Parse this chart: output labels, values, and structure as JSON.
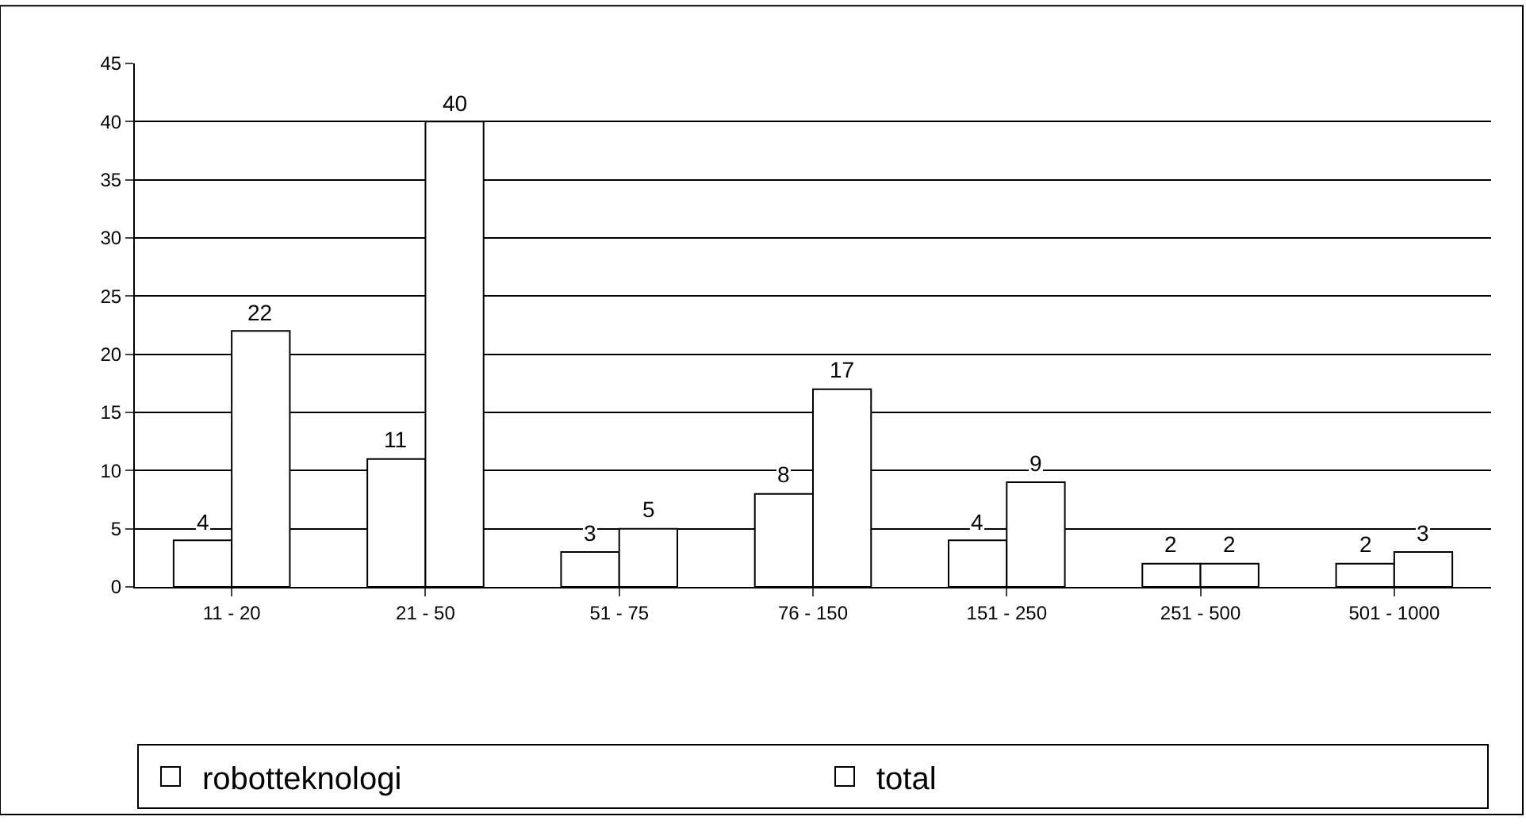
{
  "chart_data": {
    "type": "bar",
    "categories": [
      "11 - 20",
      "21 - 50",
      "51 - 75",
      "76 - 150",
      "151 - 250",
      "251 - 500",
      "501 - 1000"
    ],
    "series": [
      {
        "name": "robotteknologi",
        "color": "#ffffff",
        "values": [
          4,
          11,
          3,
          8,
          4,
          2,
          2
        ]
      },
      {
        "name": "total",
        "color": "#ffffff",
        "values": [
          22,
          40,
          5,
          17,
          9,
          2,
          3
        ]
      }
    ],
    "ylim": [
      0,
      45
    ],
    "yticks": [
      0,
      5,
      10,
      15,
      20,
      25,
      30,
      35,
      40,
      45
    ],
    "grid": "y",
    "legend": "bottom",
    "data_labels": true
  }
}
